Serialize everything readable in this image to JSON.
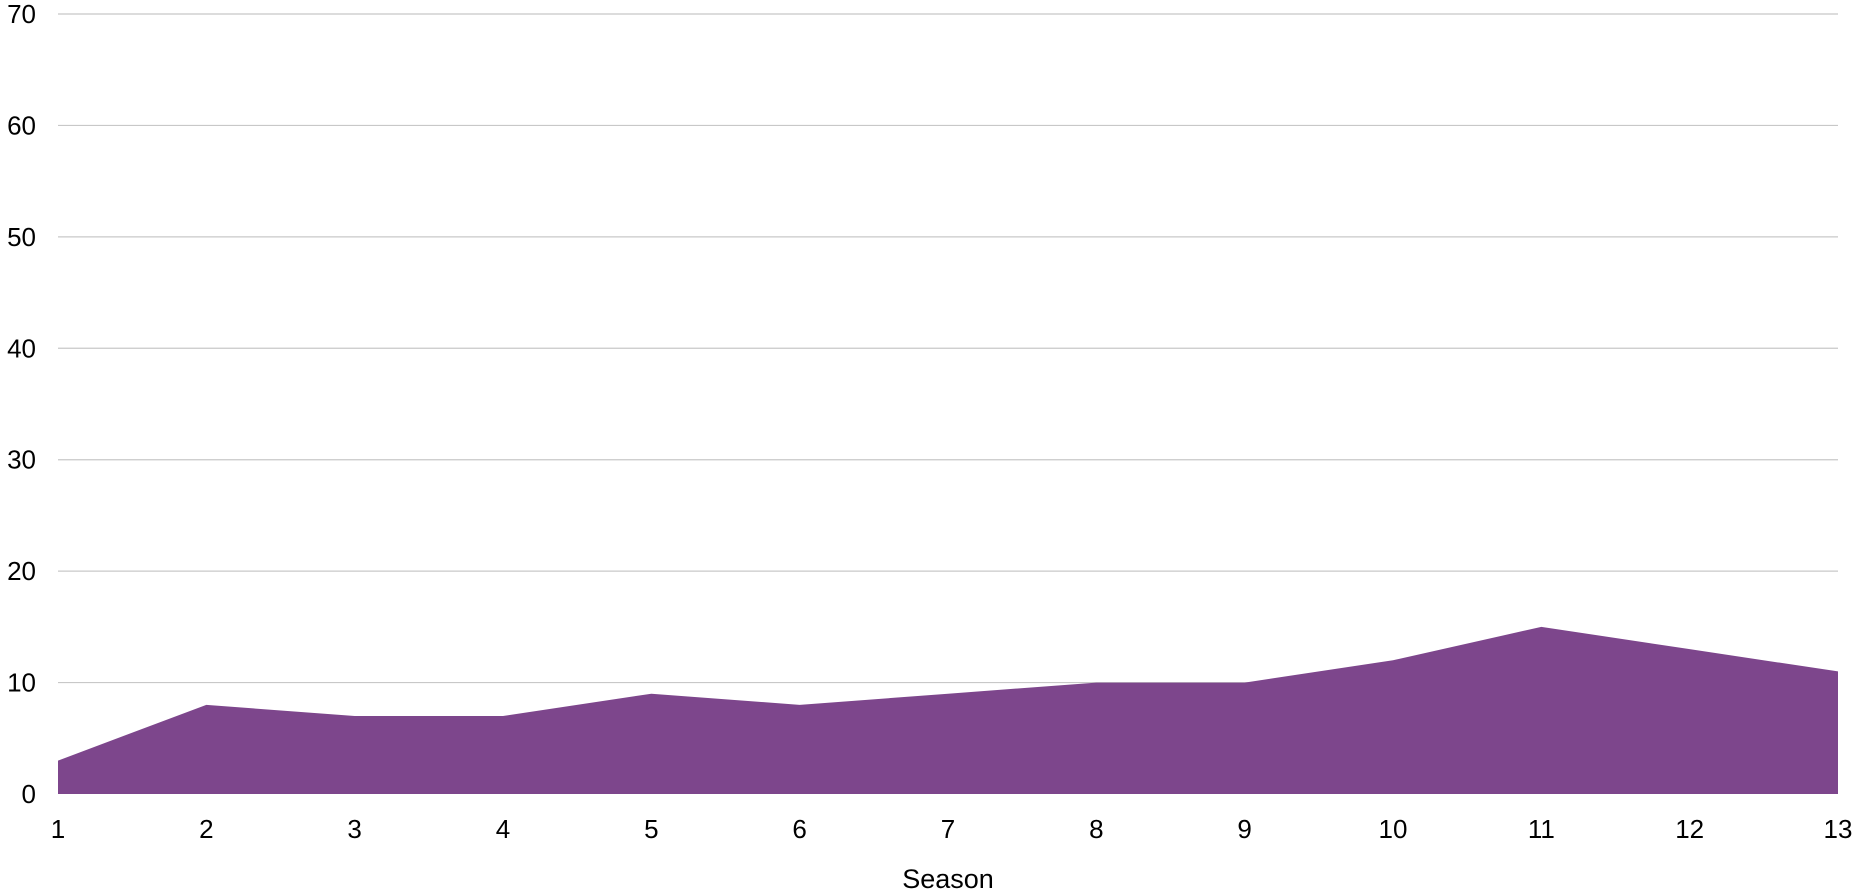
{
  "chart_data": {
    "type": "area",
    "title": "",
    "xlabel": "Season",
    "ylabel": "",
    "x": [
      1,
      2,
      3,
      4,
      5,
      6,
      7,
      8,
      9,
      10,
      11,
      12,
      13
    ],
    "series": [
      {
        "values": [
          3,
          8,
          7,
          7,
          9,
          8,
          9,
          10,
          10,
          12,
          15,
          13,
          11
        ],
        "color": "#7d468c"
      }
    ],
    "ylim": [
      0,
      70
    ],
    "yticks": [
      0,
      10,
      20,
      30,
      40,
      50,
      60,
      70
    ],
    "xticks": [
      "1",
      "2",
      "3",
      "4",
      "5",
      "6",
      "7",
      "8",
      "9",
      "10",
      "11",
      "12",
      "13"
    ],
    "grid": true,
    "legend": "none"
  }
}
